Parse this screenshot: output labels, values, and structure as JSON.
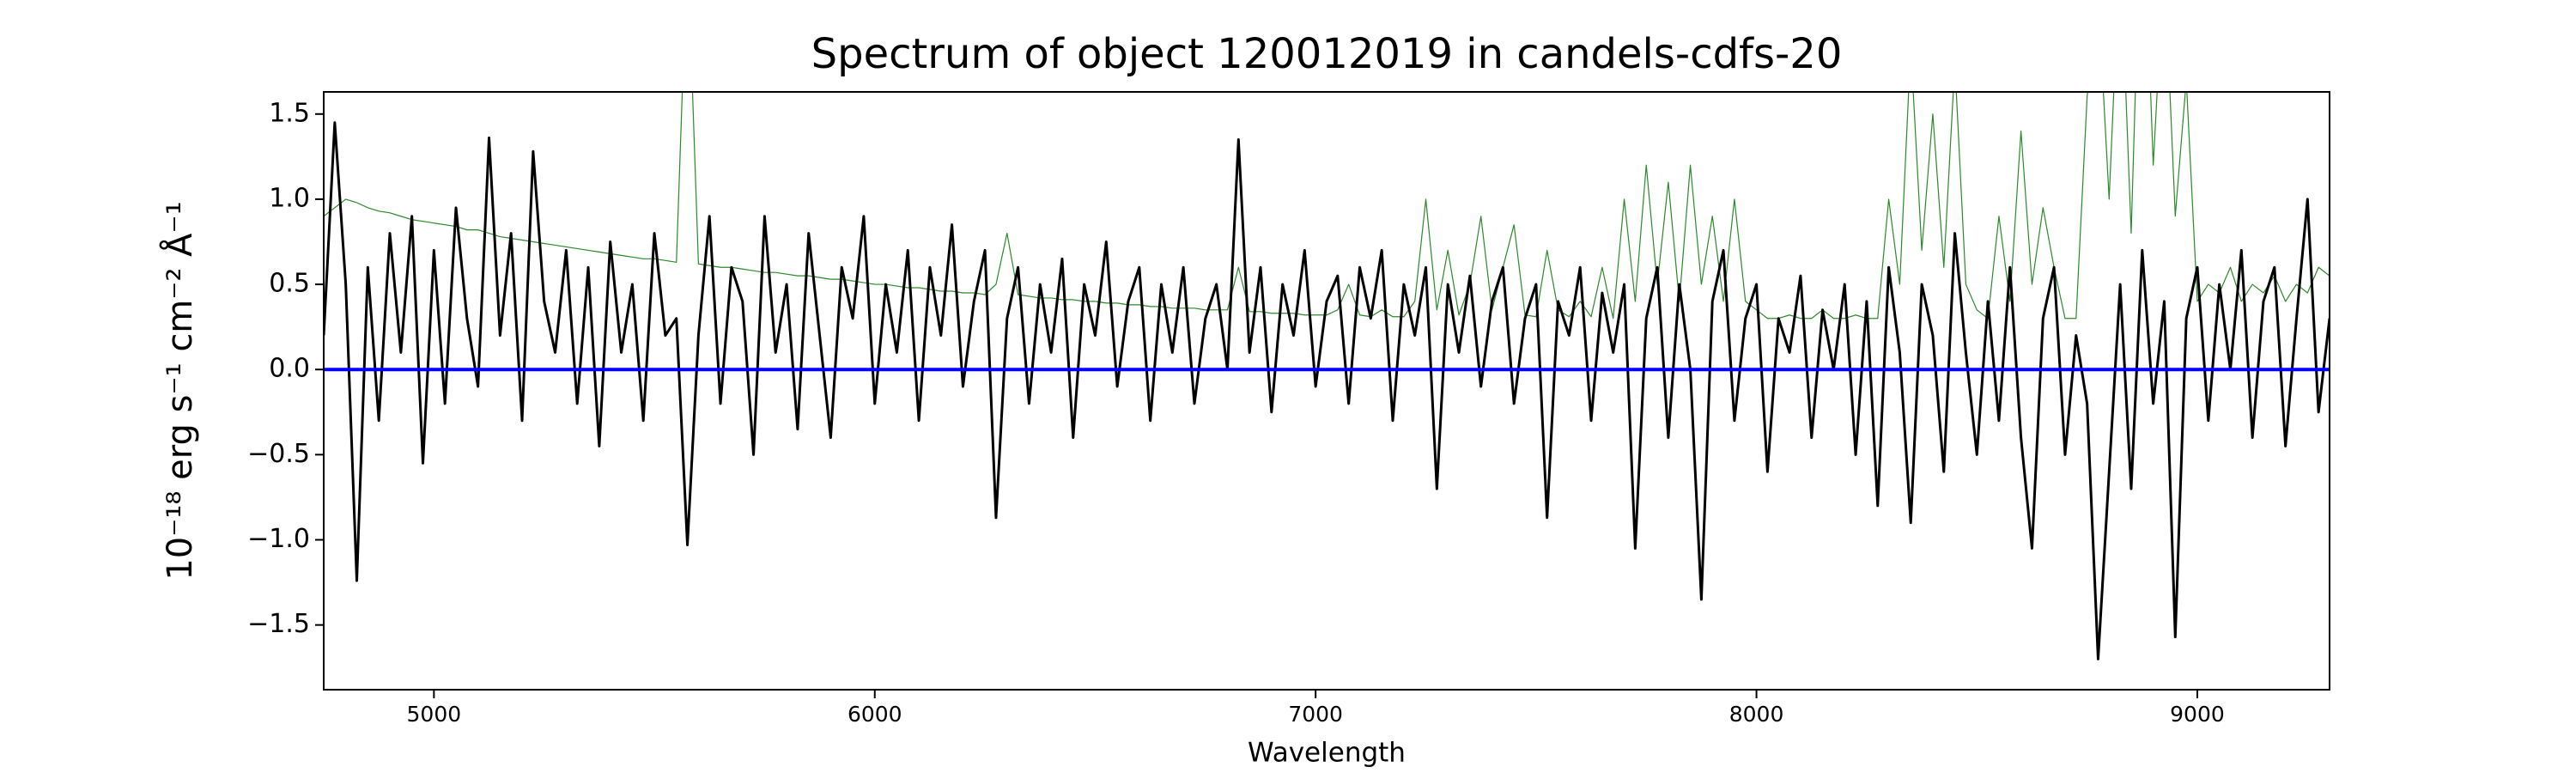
{
  "chart_data": {
    "type": "line",
    "title": "Spectrum of object 120012019 in candels-cdfs-20",
    "x_label": "Wavelength",
    "y_label": "10⁻¹⁸ erg s⁻¹ cm⁻² Å⁻¹",
    "xlim": [
      4750,
      9300
    ],
    "ylim": [
      -1.88,
      1.63
    ],
    "xticks": [
      5000,
      6000,
      7000,
      8000,
      9000
    ],
    "yticks": [
      {
        "value": -1.5,
        "label": "−1.5"
      },
      {
        "value": -1,
        "label": "−1.0"
      },
      {
        "value": -0.5,
        "label": "−0.5"
      },
      {
        "value": 0,
        "label": "0.0"
      },
      0.5,
      {
        "value": 1,
        "label": "1.0"
      },
      1.5
    ],
    "grid": false,
    "x": [
      4750,
      4775,
      4800,
      4825,
      4850,
      4875,
      4900,
      4925,
      4950,
      4975,
      5000,
      5025,
      5050,
      5075,
      5100,
      5125,
      5150,
      5175,
      5200,
      5225,
      5250,
      5275,
      5300,
      5325,
      5350,
      5375,
      5400,
      5425,
      5450,
      5475,
      5500,
      5525,
      5550,
      5575,
      5600,
      5625,
      5650,
      5675,
      5700,
      5725,
      5750,
      5775,
      5800,
      5825,
      5850,
      5875,
      5900,
      5925,
      5950,
      5975,
      6000,
      6025,
      6050,
      6075,
      6100,
      6125,
      6150,
      6175,
      6200,
      6225,
      6250,
      6275,
      6300,
      6325,
      6350,
      6375,
      6400,
      6425,
      6450,
      6475,
      6500,
      6525,
      6550,
      6575,
      6600,
      6625,
      6650,
      6675,
      6700,
      6725,
      6750,
      6775,
      6800,
      6825,
      6850,
      6875,
      6900,
      6925,
      6950,
      6975,
      7000,
      7025,
      7050,
      7075,
      7100,
      7125,
      7150,
      7175,
      7200,
      7225,
      7250,
      7275,
      7300,
      7325,
      7350,
      7375,
      7400,
      7425,
      7450,
      7475,
      7500,
      7525,
      7550,
      7575,
      7600,
      7625,
      7650,
      7675,
      7700,
      7725,
      7750,
      7775,
      7800,
      7825,
      7850,
      7875,
      7900,
      7925,
      7950,
      7975,
      8000,
      8025,
      8050,
      8075,
      8100,
      8125,
      8150,
      8175,
      8200,
      8225,
      8250,
      8275,
      8300,
      8325,
      8350,
      8375,
      8400,
      8425,
      8450,
      8475,
      8500,
      8525,
      8550,
      8575,
      8600,
      8625,
      8650,
      8675,
      8700,
      8725,
      8750,
      8775,
      8800,
      8825,
      8850,
      8875,
      8900,
      8925,
      8950,
      8975,
      9000,
      9025,
      9050,
      9075,
      9100,
      9125,
      9150,
      9175,
      9200,
      9225,
      9250,
      9275,
      9300
    ],
    "series": [
      {
        "color": "#2a8a2a",
        "line_width": 1.2,
        "values": [
          0.9,
          0.95,
          1.0,
          0.98,
          0.95,
          0.93,
          0.92,
          0.9,
          0.88,
          0.87,
          0.86,
          0.85,
          0.84,
          0.82,
          0.82,
          0.8,
          0.78,
          0.77,
          0.76,
          0.75,
          0.74,
          0.73,
          0.72,
          0.71,
          0.7,
          0.69,
          0.68,
          0.67,
          0.66,
          0.65,
          0.65,
          0.64,
          0.63,
          2.5,
          0.62,
          0.61,
          0.6,
          0.6,
          0.59,
          0.58,
          0.57,
          0.57,
          0.56,
          0.55,
          0.55,
          0.54,
          0.53,
          0.53,
          0.52,
          0.51,
          0.5,
          0.5,
          0.49,
          0.48,
          0.48,
          0.47,
          0.46,
          0.46,
          0.45,
          0.45,
          0.44,
          0.5,
          0.8,
          0.44,
          0.43,
          0.42,
          0.42,
          0.41,
          0.41,
          0.4,
          0.4,
          0.39,
          0.39,
          0.38,
          0.38,
          0.37,
          0.37,
          0.36,
          0.36,
          0.36,
          0.35,
          0.35,
          0.35,
          0.6,
          0.34,
          0.34,
          0.33,
          0.33,
          0.33,
          0.32,
          0.32,
          0.32,
          0.35,
          0.5,
          0.32,
          0.31,
          0.35,
          0.31,
          0.31,
          0.4,
          1.0,
          0.35,
          0.7,
          0.32,
          0.5,
          0.9,
          0.35,
          0.6,
          0.85,
          0.32,
          0.31,
          0.7,
          0.35,
          0.31,
          0.4,
          0.31,
          0.6,
          0.3,
          1.0,
          0.4,
          1.2,
          0.5,
          1.1,
          0.4,
          1.2,
          0.5,
          0.9,
          0.4,
          1.0,
          0.4,
          0.35,
          0.3,
          0.3,
          0.32,
          0.3,
          0.3,
          0.35,
          0.3,
          0.3,
          0.32,
          0.3,
          0.3,
          1.0,
          0.5,
          1.9,
          0.7,
          1.5,
          0.6,
          1.8,
          0.5,
          0.35,
          0.3,
          0.9,
          0.4,
          1.4,
          0.5,
          0.95,
          0.6,
          0.3,
          0.3,
          1.6,
          2.2,
          1.0,
          2.5,
          0.8,
          3.0,
          1.2,
          2.4,
          0.9,
          1.7,
          0.4,
          0.5,
          0.45,
          0.6,
          0.4,
          0.5,
          0.45,
          0.55,
          0.4,
          0.5,
          0.45,
          0.6,
          0.55
        ]
      },
      {
        "color": "#000000",
        "line_width": 3,
        "values": [
          0.2,
          1.45,
          0.5,
          -1.24,
          0.6,
          -0.3,
          0.8,
          0.1,
          0.9,
          -0.55,
          0.7,
          -0.2,
          0.95,
          0.3,
          -0.1,
          1.36,
          0.2,
          0.8,
          -0.3,
          1.28,
          0.4,
          0.1,
          0.7,
          -0.2,
          0.6,
          -0.45,
          0.75,
          0.1,
          0.5,
          -0.3,
          0.8,
          0.2,
          0.3,
          -1.03,
          0.2,
          0.9,
          -0.2,
          0.6,
          0.4,
          -0.5,
          0.9,
          0.1,
          0.5,
          -0.35,
          0.8,
          0.2,
          -0.4,
          0.6,
          0.3,
          0.9,
          -0.2,
          0.5,
          0.1,
          0.7,
          -0.3,
          0.6,
          0.2,
          0.85,
          -0.1,
          0.4,
          0.7,
          -0.87,
          0.3,
          0.6,
          -0.2,
          0.5,
          0.1,
          0.65,
          -0.4,
          0.5,
          0.2,
          0.75,
          -0.1,
          0.4,
          0.6,
          -0.3,
          0.5,
          0.1,
          0.6,
          -0.2,
          0.3,
          0.5,
          0.0,
          1.35,
          0.1,
          0.6,
          -0.25,
          0.5,
          0.2,
          0.7,
          -0.1,
          0.4,
          0.55,
          -0.2,
          0.6,
          0.3,
          0.7,
          -0.3,
          0.5,
          0.2,
          0.6,
          -0.7,
          0.5,
          0.1,
          0.55,
          -0.1,
          0.4,
          0.6,
          -0.2,
          0.3,
          0.5,
          -0.87,
          0.4,
          0.2,
          0.6,
          -0.3,
          0.45,
          0.1,
          0.5,
          -1.05,
          0.3,
          0.6,
          -0.4,
          0.5,
          0.0,
          -1.35,
          0.4,
          0.7,
          -0.3,
          0.3,
          0.5,
          -0.6,
          0.3,
          0.1,
          0.55,
          -0.4,
          0.35,
          0.0,
          0.5,
          -0.5,
          0.4,
          -0.8,
          0.6,
          0.1,
          -0.9,
          0.5,
          0.2,
          -0.6,
          0.8,
          0.1,
          -0.5,
          0.4,
          -0.3,
          0.6,
          -0.4,
          -1.05,
          0.3,
          0.6,
          -0.5,
          0.2,
          -0.2,
          -1.7,
          -0.6,
          0.5,
          -0.7,
          0.7,
          -0.2,
          0.4,
          -1.57,
          0.3,
          0.6,
          -0.3,
          0.5,
          0.0,
          0.7,
          -0.4,
          0.4,
          0.6,
          -0.45,
          0.3,
          1.0,
          -0.25,
          0.3
        ]
      },
      {
        "color": "#0000ff",
        "line_width": 4,
        "x": [
          4750,
          9300
        ],
        "values": [
          0,
          0
        ]
      }
    ]
  }
}
